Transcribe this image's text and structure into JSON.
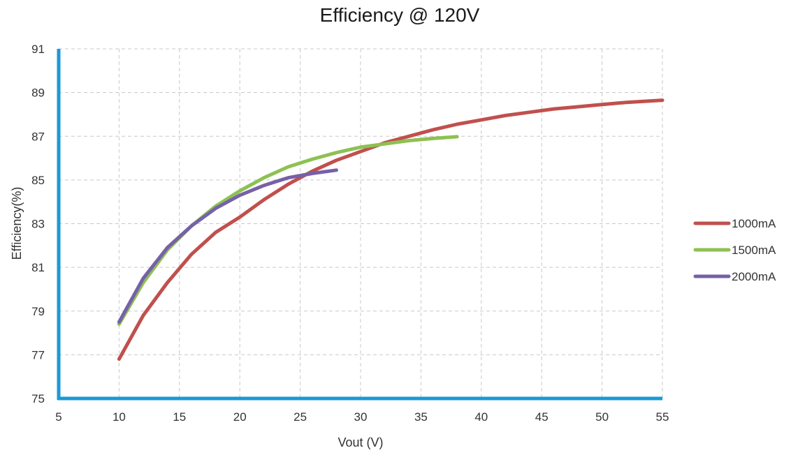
{
  "chart_data": {
    "type": "line",
    "title": "Efficiency @ 120V",
    "xlabel": "Vout (V)",
    "ylabel": "Efficiency(%)",
    "xlim": [
      5,
      55
    ],
    "ylim": [
      75,
      91
    ],
    "xticks": [
      5,
      10,
      15,
      20,
      25,
      30,
      35,
      40,
      45,
      50,
      55
    ],
    "yticks": [
      75,
      77,
      79,
      81,
      83,
      85,
      87,
      89,
      91
    ],
    "grid": true,
    "legend_position": "right",
    "axis_color": "#1a9ad6",
    "series": [
      {
        "name": "1000mA",
        "color": "#c0504d",
        "x": [
          10,
          12,
          14,
          16,
          18,
          20,
          22,
          24,
          26,
          28,
          30,
          32,
          34,
          36,
          38,
          40,
          42,
          44,
          46,
          48,
          50,
          52,
          55
        ],
        "y": [
          76.8,
          78.8,
          80.3,
          81.6,
          82.6,
          83.3,
          84.1,
          84.8,
          85.4,
          85.9,
          86.3,
          86.7,
          87.0,
          87.3,
          87.55,
          87.75,
          87.95,
          88.1,
          88.25,
          88.35,
          88.45,
          88.55,
          88.65
        ]
      },
      {
        "name": "1500mA",
        "color": "#8dc153",
        "x": [
          10,
          12,
          14,
          16,
          18,
          20,
          22,
          24,
          26,
          28,
          30,
          32,
          34,
          36,
          38
        ],
        "y": [
          78.4,
          80.3,
          81.8,
          82.9,
          83.8,
          84.5,
          85.1,
          85.6,
          85.95,
          86.25,
          86.5,
          86.65,
          86.8,
          86.9,
          86.98
        ]
      },
      {
        "name": "2000mA",
        "color": "#7661a8",
        "x": [
          10,
          12,
          14,
          16,
          18,
          20,
          22,
          24,
          26,
          28
        ],
        "y": [
          78.5,
          80.5,
          81.9,
          82.9,
          83.7,
          84.3,
          84.75,
          85.1,
          85.3,
          85.45
        ]
      }
    ]
  }
}
